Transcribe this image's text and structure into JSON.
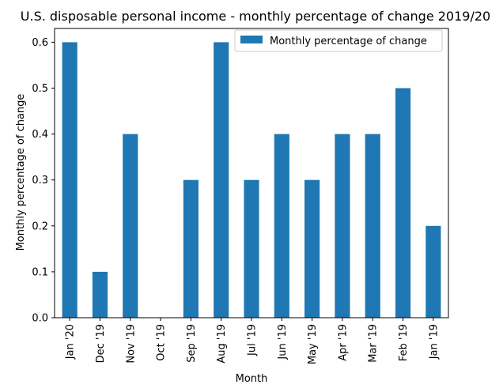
{
  "chart_data": {
    "type": "bar",
    "title": "U.S. disposable personal income - monthly percentage of change 2019/20",
    "xlabel": "Month",
    "ylabel": "Monthly percentage of change",
    "categories": [
      "Jan '20",
      "Dec '19",
      "Nov '19",
      "Oct '19",
      "Sep '19",
      "Aug '19",
      "Jul '19",
      "Jun '19",
      "May '19",
      "Apr '19",
      "Mar '19",
      "Feb '19",
      "Jan '19"
    ],
    "series": [
      {
        "name": "Monthly percentage of change",
        "values": [
          0.6,
          0.1,
          0.4,
          0.0,
          0.3,
          0.6,
          0.3,
          0.4,
          0.3,
          0.4,
          0.4,
          0.5,
          0.2
        ],
        "color": "#1f77b4"
      }
    ],
    "ylim": [
      0,
      0.63
    ],
    "yticks": [
      "0.0",
      "0.1",
      "0.2",
      "0.3",
      "0.4",
      "0.5",
      "0.6"
    ],
    "grid": false,
    "legend_position": "top-right"
  }
}
